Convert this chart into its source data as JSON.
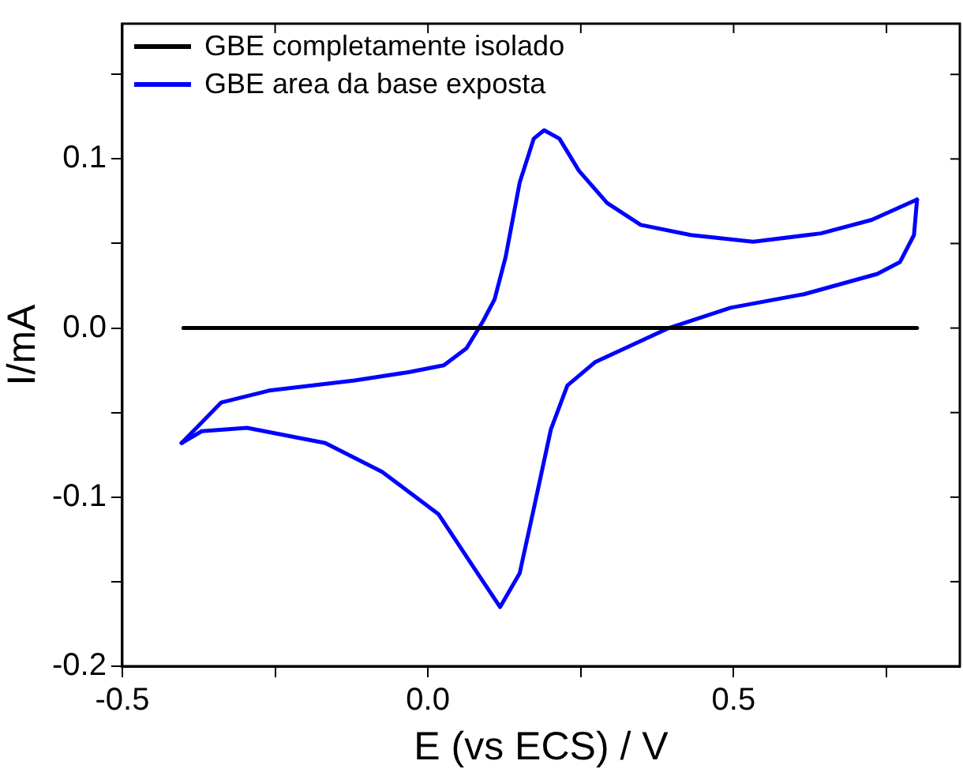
{
  "chart_data": {
    "type": "line",
    "xlabel": "E (vs ECS) / V",
    "ylabel": "I/mA",
    "xlim": [
      -0.5,
      0.87
    ],
    "ylim": [
      -0.2,
      0.18
    ],
    "xticks": [
      -0.5,
      {
        "value": -0.25,
        "label": null
      },
      {
        "value": 0.0,
        "label": "0.0"
      },
      {
        "value": 0.25,
        "label": null
      },
      0.5,
      {
        "value": 0.75,
        "label": null
      }
    ],
    "yticks": [
      -0.2,
      {
        "value": -0.15,
        "label": null
      },
      -0.1,
      {
        "value": -0.05,
        "label": null
      },
      {
        "value": 0.0,
        "label": "0.0"
      },
      {
        "value": 0.05,
        "label": null
      },
      0.1,
      {
        "value": 0.15,
        "label": null
      }
    ],
    "grid": false,
    "legend": "top left",
    "marker": "none",
    "line_style": "solid",
    "series": [
      {
        "name": "GBE completamente isolado",
        "color": "#000000",
        "x": [
          -0.4,
          0.8
        ],
        "values": [
          0,
          0
        ]
      },
      {
        "name": "GBE area da base exposta",
        "color": "#0000ff",
        "x": [
          -0.403,
          -0.338,
          -0.26,
          -0.12,
          -0.03,
          0.026,
          0.063,
          0.09,
          0.109,
          0.127,
          0.15,
          0.173,
          0.19,
          0.215,
          0.247,
          0.293,
          0.348,
          0.43,
          0.532,
          0.643,
          0.726,
          0.8
        ],
        "values": [
          -0.068,
          -0.044,
          -0.037,
          -0.031,
          -0.026,
          -0.022,
          -0.012,
          0.004,
          0.017,
          0.042,
          0.086,
          0.112,
          0.117,
          0.112,
          0.093,
          0.074,
          0.061,
          0.055,
          0.051,
          0.056,
          0.064,
          0.076
        ]
      },
      {
        "color": "#0000ff",
        "x": [
          0.8,
          0.795,
          0.772,
          0.735,
          0.615,
          0.495,
          0.394,
          0.274,
          0.228,
          0.201,
          0.173,
          0.15,
          0.118,
          0.081,
          0.017,
          -0.075,
          -0.168,
          -0.296,
          -0.37,
          -0.403
        ],
        "values": [
          0.076,
          0.055,
          0.039,
          0.032,
          0.02,
          0.012,
          0.0,
          -0.02,
          -0.034,
          -0.06,
          -0.107,
          -0.145,
          -0.165,
          -0.145,
          -0.11,
          -0.085,
          -0.068,
          -0.059,
          -0.061,
          -0.068
        ]
      }
    ]
  }
}
